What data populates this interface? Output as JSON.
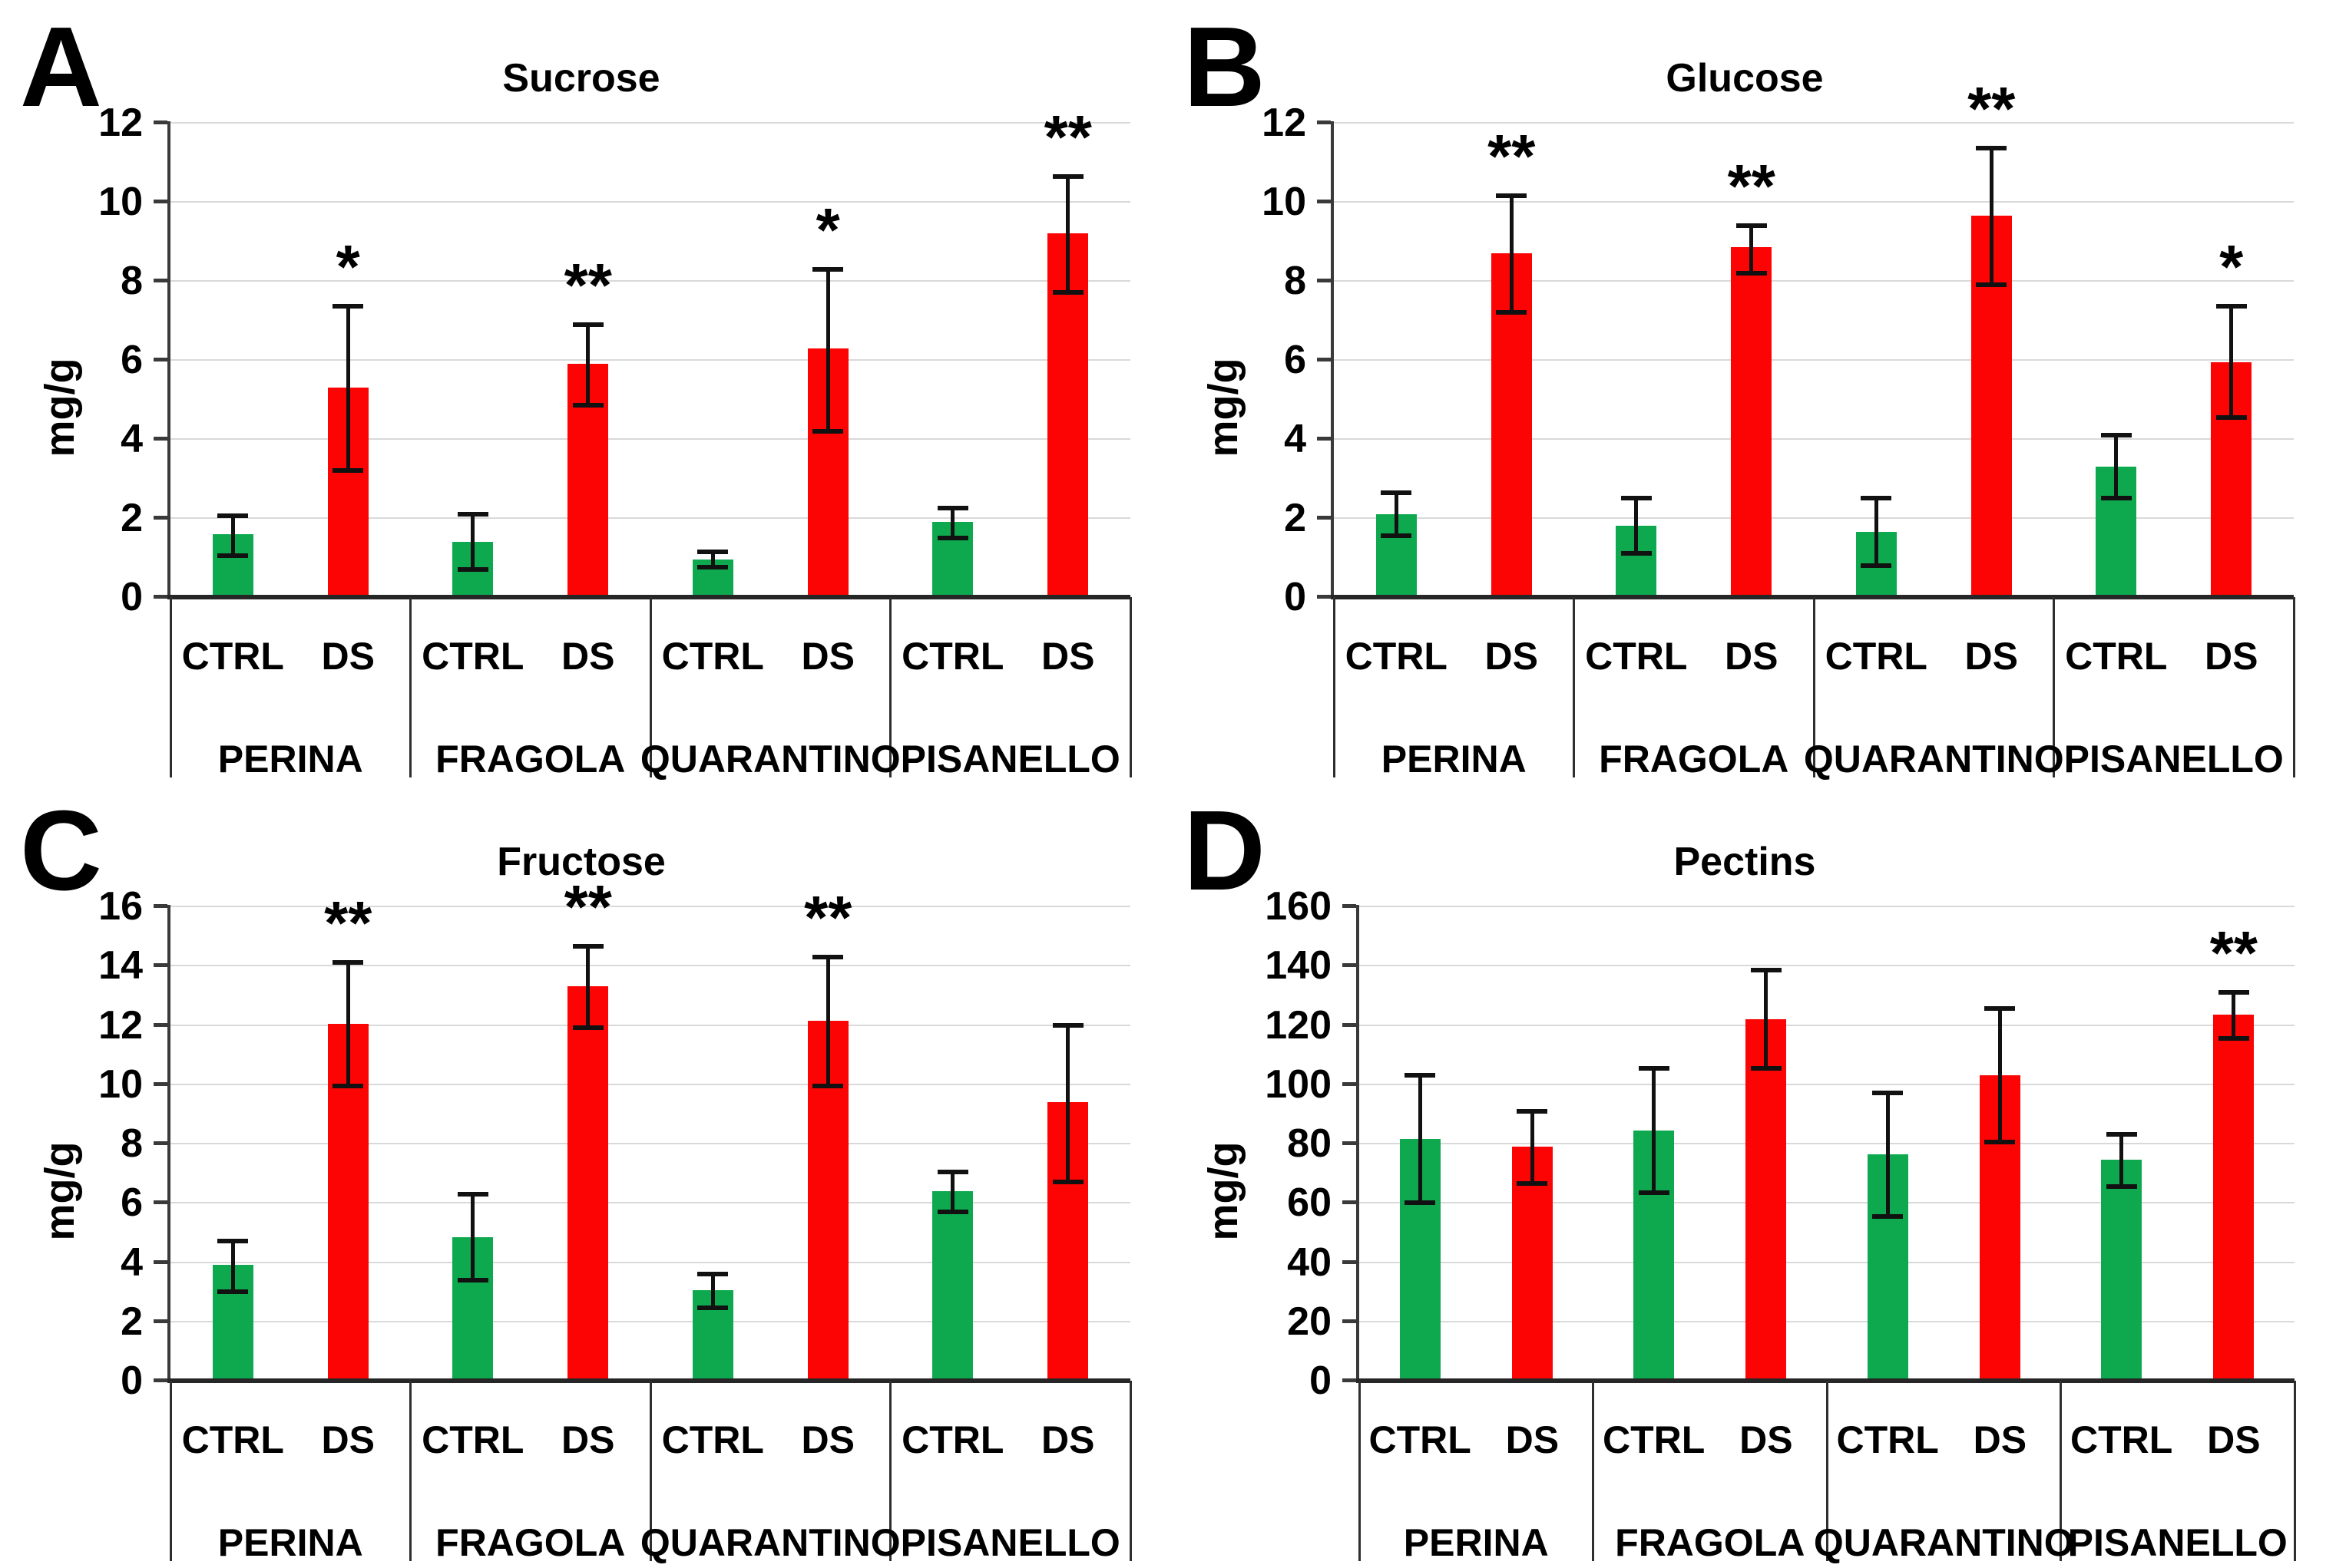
{
  "figure_title": "Sugar and pectin content bar charts",
  "colors": {
    "ctrl_bar": "#0ea94f",
    "ds_bar": "#fc0404",
    "gridline": "#d9d9d9",
    "axis": "#3a3a3a",
    "baseline": "#262626",
    "separator": "#2e2e2e",
    "error_bar": "#111111",
    "text": "#000000",
    "background": "#ffffff"
  },
  "chart_data": [
    {
      "type": "bar",
      "panel_letter": "A",
      "title": "Sucrose",
      "ylabel": "mg/g",
      "ylim": [
        0,
        12
      ],
      "ytick_step": 2,
      "yticks": [
        "0",
        "2",
        "4",
        "6",
        "8",
        "10",
        "12"
      ],
      "grid": true,
      "legend_position": "none",
      "categories": [
        "PERINA",
        "FRAGOLA",
        "QUARANTINO",
        "PISANELLO"
      ],
      "conditions": [
        "CTRL",
        "DS"
      ],
      "series": [
        {
          "name": "CTRL",
          "values": [
            1.6,
            1.4,
            0.95,
            1.9
          ],
          "err_bottom": [
            1.05,
            0.7,
            0.75,
            1.5
          ],
          "err_top": [
            2.05,
            2.1,
            1.15,
            2.25
          ],
          "significance": [
            "",
            "",
            "",
            ""
          ]
        },
        {
          "name": "DS",
          "values": [
            5.3,
            5.9,
            6.3,
            9.2
          ],
          "err_bottom": [
            3.2,
            4.85,
            4.2,
            7.7
          ],
          "err_top": [
            7.35,
            6.9,
            8.3,
            10.65
          ],
          "significance": [
            "*",
            "**",
            "*",
            "**"
          ]
        }
      ]
    },
    {
      "type": "bar",
      "panel_letter": "B",
      "title": "Glucose",
      "ylabel": "mg/g",
      "ylim": [
        0,
        12
      ],
      "ytick_step": 2,
      "yticks": [
        "0",
        "2",
        "4",
        "6",
        "8",
        "10",
        "12"
      ],
      "grid": true,
      "legend_position": "none",
      "categories": [
        "PERINA",
        "FRAGOLA",
        "QUARANTINO",
        "PISANELLO"
      ],
      "conditions": [
        "CTRL",
        "DS"
      ],
      "series": [
        {
          "name": "CTRL",
          "values": [
            2.1,
            1.8,
            1.65,
            3.3
          ],
          "err_bottom": [
            1.55,
            1.1,
            0.8,
            2.5
          ],
          "err_top": [
            2.65,
            2.5,
            2.5,
            4.1
          ],
          "significance": [
            "",
            "",
            "",
            ""
          ]
        },
        {
          "name": "DS",
          "values": [
            8.7,
            8.85,
            9.65,
            5.95
          ],
          "err_bottom": [
            7.2,
            8.2,
            7.9,
            4.55
          ],
          "err_top": [
            10.15,
            9.4,
            11.35,
            7.35
          ],
          "significance": [
            "**",
            "**",
            "**",
            "*"
          ]
        }
      ]
    },
    {
      "type": "bar",
      "panel_letter": "C",
      "title": "Fructose",
      "ylabel": "mg/g",
      "ylim": [
        0,
        16
      ],
      "ytick_step": 2,
      "yticks": [
        "0",
        "2",
        "4",
        "6",
        "8",
        "10",
        "12",
        "14",
        "16"
      ],
      "grid": true,
      "legend_position": "none",
      "categories": [
        "PERINA",
        "FRAGOLA",
        "QUARANTINO",
        "PISANELLO"
      ],
      "conditions": [
        "CTRL",
        "DS"
      ],
      "series": [
        {
          "name": "CTRL",
          "values": [
            3.9,
            4.85,
            3.05,
            6.4
          ],
          "err_bottom": [
            3.0,
            3.4,
            2.45,
            5.7
          ],
          "err_top": [
            4.7,
            6.3,
            3.6,
            7.05
          ],
          "significance": [
            "",
            "",
            "",
            ""
          ]
        },
        {
          "name": "DS",
          "values": [
            12.05,
            13.3,
            12.15,
            9.4
          ],
          "err_bottom": [
            9.95,
            11.9,
            9.95,
            6.7
          ],
          "err_top": [
            14.1,
            14.65,
            14.3,
            12.0
          ],
          "significance": [
            "**",
            "**",
            "**",
            ""
          ]
        }
      ]
    },
    {
      "type": "bar",
      "panel_letter": "D",
      "title": "Pectins",
      "ylabel": "mg/g",
      "ylim": [
        0,
        160
      ],
      "ytick_step": 20,
      "yticks": [
        "0",
        "20",
        "40",
        "60",
        "80",
        "100",
        "120",
        "140",
        "160"
      ],
      "grid": true,
      "legend_position": "none",
      "categories": [
        "PERINA",
        "FRAGOLA",
        "QUARANTINO",
        "PISANELLO"
      ],
      "conditions": [
        "CTRL",
        "DS"
      ],
      "series": [
        {
          "name": "CTRL",
          "values": [
            81.5,
            84.5,
            76.5,
            74.5
          ],
          "err_bottom": [
            60,
            63.5,
            55.5,
            65.5
          ],
          "err_top": [
            103,
            105.5,
            97,
            83
          ],
          "significance": [
            "",
            "",
            "",
            ""
          ]
        },
        {
          "name": "DS",
          "values": [
            79,
            122,
            103,
            123.5
          ],
          "err_bottom": [
            66.5,
            105.5,
            80.5,
            115.5
          ],
          "err_top": [
            91,
            138.5,
            125.5,
            131
          ],
          "significance": [
            "",
            "",
            "",
            "**"
          ]
        }
      ]
    }
  ]
}
